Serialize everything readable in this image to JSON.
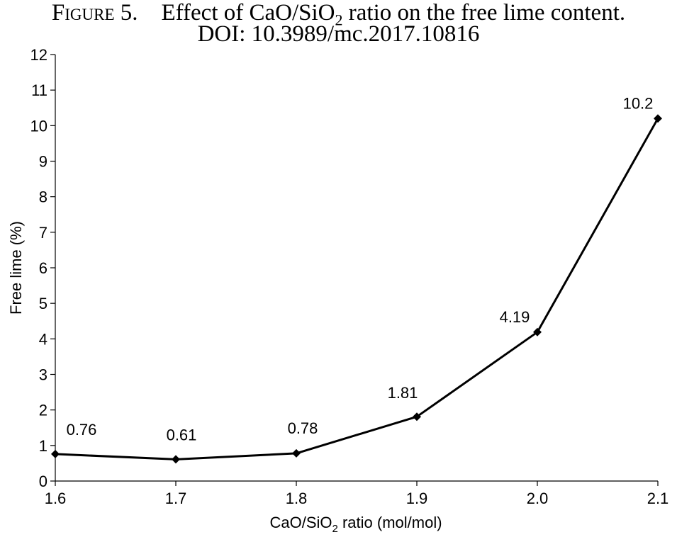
{
  "caption": {
    "figure_label": "Figure 5.",
    "title_pre": "Effect of CaO/SiO",
    "title_sub": "2",
    "title_post": " ratio on the free lime content.",
    "doi": "DOI: 10.3989/mc.2017.10816"
  },
  "chart_data": {
    "type": "line",
    "x": [
      1.6,
      1.7,
      1.8,
      1.9,
      2.0,
      2.1
    ],
    "x_tick_labels": [
      "1.6",
      "1.7",
      "1.8",
      "1.9",
      "2.0",
      "2.1"
    ],
    "series": [
      {
        "values": [
          0.76,
          0.61,
          0.78,
          1.81,
          4.19,
          10.2
        ]
      }
    ],
    "data_labels": [
      "0.76",
      "0.61",
      "0.78",
      "1.81",
      "4.19",
      "10.2"
    ],
    "y_ticks": [
      0,
      1,
      2,
      3,
      4,
      5,
      6,
      7,
      8,
      9,
      10,
      11,
      12
    ],
    "xlabel_pre": "CaO/SiO",
    "xlabel_sub": "2",
    "xlabel_post": " ratio (mol/mol)",
    "ylabel": "Free lime (%)",
    "xlim": [
      1.6,
      2.1
    ],
    "ylim": [
      0,
      12
    ],
    "grid": false,
    "legend": "none",
    "marker": "diamond",
    "line_color": "#000000"
  }
}
